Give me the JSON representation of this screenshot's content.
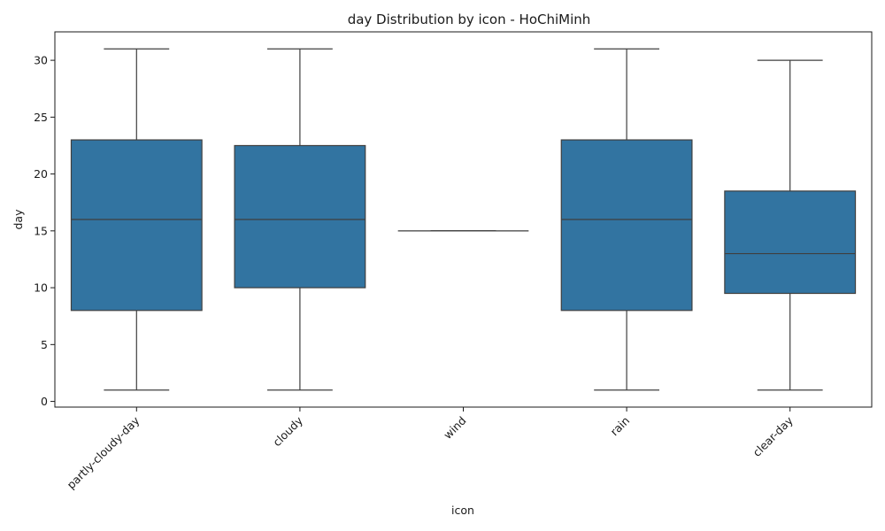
{
  "chart_data": {
    "type": "box",
    "title": "day Distribution by icon - HoChiMinh",
    "xlabel": "icon",
    "ylabel": "day",
    "ylim": [
      -0.5,
      32.5
    ],
    "yticks": [
      0,
      5,
      10,
      15,
      20,
      25,
      30
    ],
    "box_color": "#3274a1",
    "line_color": "#3f3f3f",
    "grid": false,
    "categories": [
      "partly-cloudy-day",
      "cloudy",
      "wind",
      "rain",
      "clear-day"
    ],
    "boxes": [
      {
        "category": "partly-cloudy-day",
        "whisker_low": 1,
        "q1": 8,
        "median": 16,
        "q3": 23,
        "whisker_high": 31
      },
      {
        "category": "cloudy",
        "whisker_low": 1,
        "q1": 10,
        "median": 16,
        "q3": 22.5,
        "whisker_high": 31
      },
      {
        "category": "wind",
        "whisker_low": 15,
        "q1": 15,
        "median": 15,
        "q3": 15,
        "whisker_high": 15
      },
      {
        "category": "rain",
        "whisker_low": 1,
        "q1": 8,
        "median": 16,
        "q3": 23,
        "whisker_high": 31
      },
      {
        "category": "clear-day",
        "whisker_low": 1,
        "q1": 9.5,
        "median": 13,
        "q3": 18.5,
        "whisker_high": 30
      }
    ]
  }
}
